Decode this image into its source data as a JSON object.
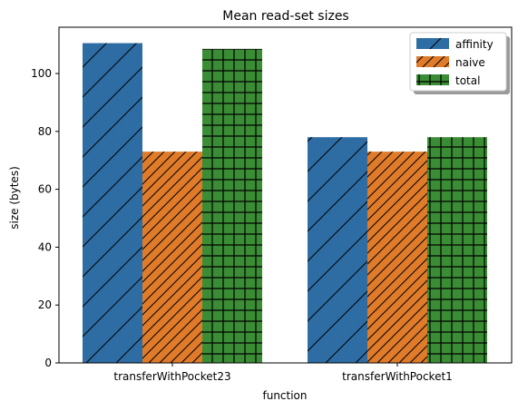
{
  "chart_data": {
    "type": "bar",
    "title": "Mean read-set sizes",
    "xlabel": "function",
    "ylabel": "size (bytes)",
    "categories": [
      "transferWithPocket23",
      "transferWithPocket1"
    ],
    "series": [
      {
        "name": "affinity",
        "values": [
          110.5,
          78
        ],
        "color": "#2e6da4",
        "hatch": "diagonal-wide"
      },
      {
        "name": "naive",
        "values": [
          73,
          73
        ],
        "color": "#e07b2a",
        "hatch": "diagonal-dense"
      },
      {
        "name": "total",
        "values": [
          108.5,
          78
        ],
        "color": "#3a8c35",
        "hatch": "grid"
      }
    ],
    "ylim": [
      0,
      116
    ],
    "yticks": [
      0,
      20,
      40,
      60,
      80,
      100
    ],
    "grid": false,
    "legend_position": "top-right"
  }
}
